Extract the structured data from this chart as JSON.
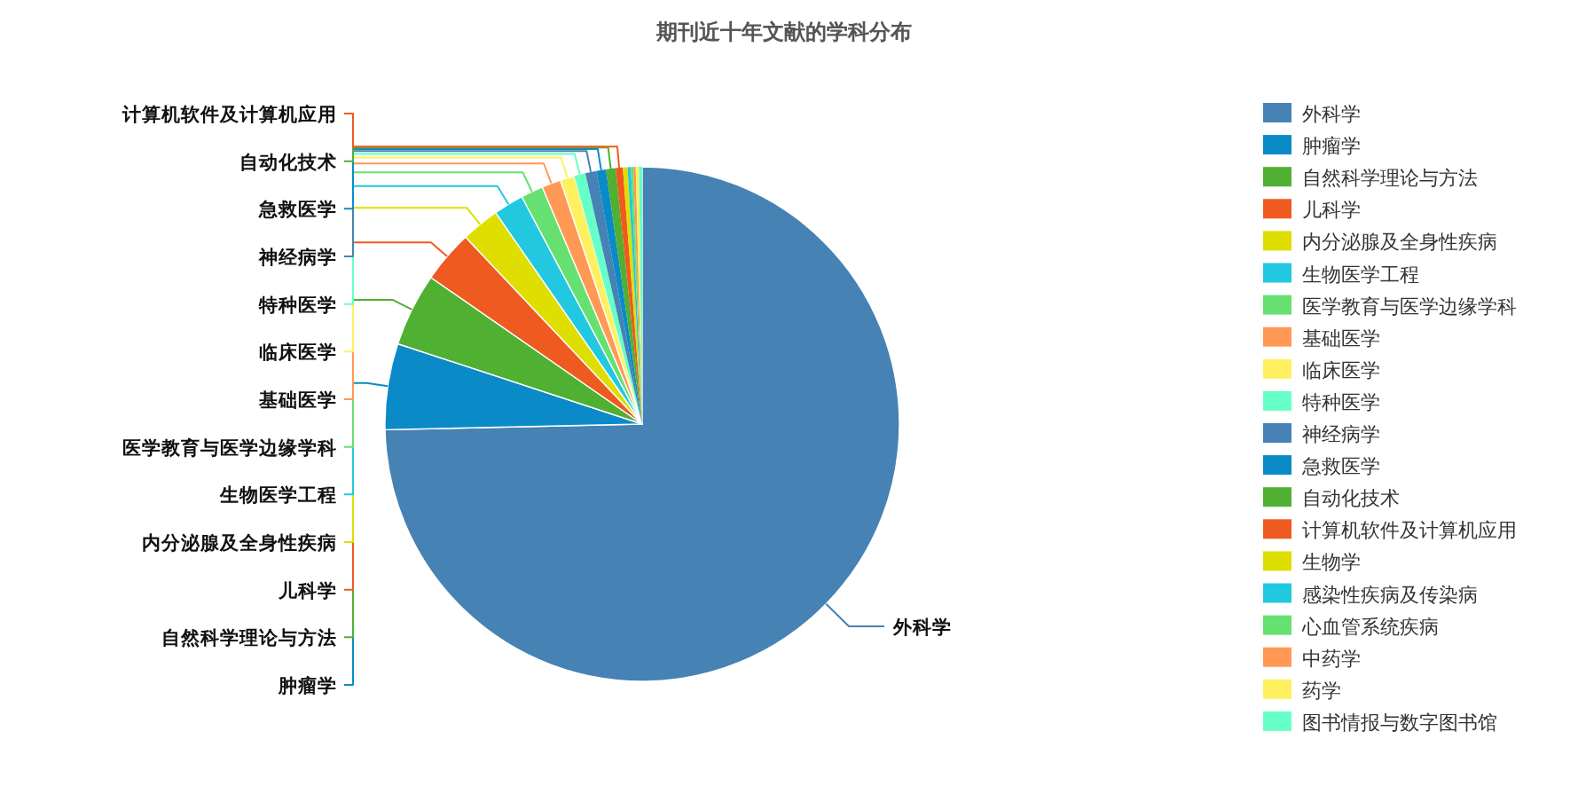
{
  "chart_data": {
    "type": "pie",
    "title": "期刊近十年文献的学科分布",
    "categories": [
      "外科学",
      "肿瘤学",
      "自然科学理论与方法",
      "儿科学",
      "内分泌腺及全身性疾病",
      "生物医学工程",
      "医学教育与医学边缘学科",
      "基础医学",
      "临床医学",
      "特种医学",
      "神经病学",
      "急救医学",
      "自动化技术",
      "计算机软件及计算机应用",
      "生物学",
      "感染性疾病及传染病",
      "心血管系统疾病",
      "中药学",
      "药学",
      "图书情报与数字图书馆"
    ],
    "values": [
      74.65,
      5.4,
      4.6,
      3.3,
      2.4,
      1.9,
      1.4,
      1.2,
      0.9,
      0.7,
      0.7,
      0.6,
      0.6,
      0.45,
      0.3,
      0.2,
      0.15,
      0.15,
      0.2,
      0.2
    ],
    "colors": [
      "#4682b4",
      "#0b8ac8",
      "#4fb031",
      "#ee5a1f",
      "#dede00",
      "#22c8e0",
      "#66e070",
      "#ff9955",
      "#fff060",
      "#66ffc8",
      "#4682b4",
      "#0b8ac8",
      "#4fb031",
      "#ee5a1f",
      "#dede00",
      "#22c8e0",
      "#66e070",
      "#ff9955",
      "#fff060",
      "#66ffc8"
    ],
    "legend": "top right"
  }
}
